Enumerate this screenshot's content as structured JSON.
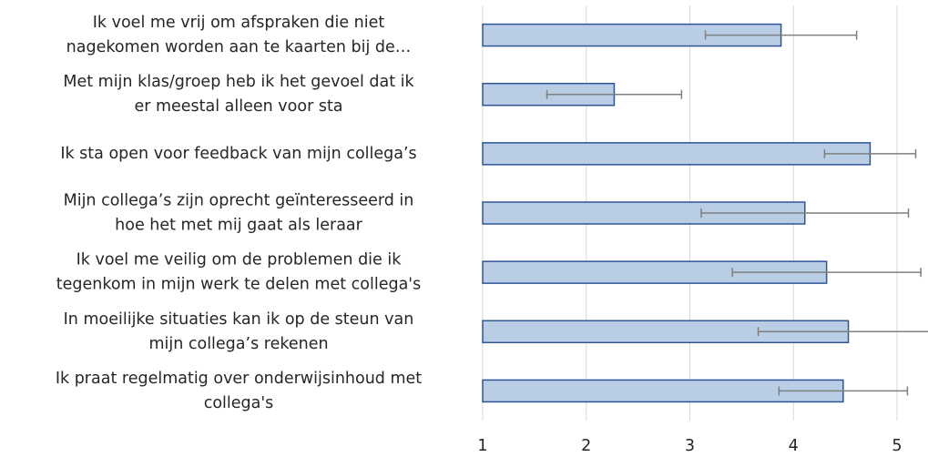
{
  "chart_data": {
    "type": "bar",
    "orientation": "horizontal",
    "categories": [
      [
        "Ik voel me vrij om afspraken die niet",
        "nagekomen worden aan te kaarten bij de…"
      ],
      [
        "Met mijn klas/groep heb ik het gevoel dat ik",
        "er meestal alleen voor sta"
      ],
      [
        "Ik sta open voor feedback van mijn collega’s"
      ],
      [
        "Mijn collega’s zijn oprecht geïnteresseerd in",
        "hoe het met mij gaat als leraar"
      ],
      [
        "Ik voel me veilig om de problemen die ik",
        "tegenkom in mijn werk te delen met collega's"
      ],
      [
        "In moeilijke situaties kan ik op de steun van",
        "mijn collega’s rekenen"
      ],
      [
        "Ik praat regelmatig over onderwijsinhoud met",
        "collega's"
      ]
    ],
    "values": [
      3.88,
      2.27,
      4.74,
      4.11,
      4.32,
      4.53,
      4.48
    ],
    "errors": [
      0.73,
      0.65,
      0.44,
      1.0,
      0.91,
      0.87,
      0.62
    ],
    "color": "#b9cde5",
    "edge_color": "#2f5597",
    "error_color": "#7f7f7f",
    "xlim": [
      1,
      5.3
    ],
    "xticks": [
      1,
      2,
      3,
      4,
      5
    ],
    "grid": true
  }
}
